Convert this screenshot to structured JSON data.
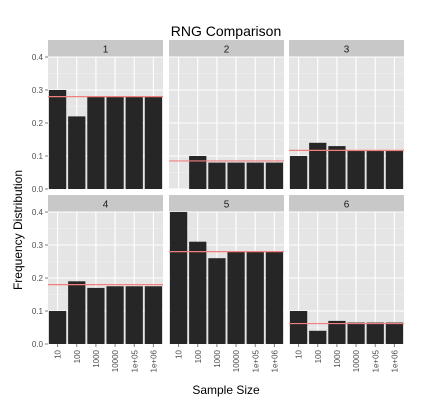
{
  "chart_data": {
    "type": "bar",
    "title": "RNG Comparison",
    "xlabel": "Sample Size",
    "ylabel": "Frequency Distribution",
    "categories": [
      "10",
      "100",
      "1000",
      "10000",
      "1e+05",
      "1e+06"
    ],
    "ylim": [
      0,
      0.4
    ],
    "yticks": [
      "0.0",
      "0.1",
      "0.2",
      "0.3",
      "0.4"
    ],
    "grid": true,
    "colors": {
      "panel_bg": "#e5e5e5",
      "strip_bg": "#c8c8c8",
      "bar": "#262626",
      "reference_line": "#f08080",
      "grid": "#ffffff"
    },
    "facets": [
      {
        "label": "1",
        "values": [
          0.3,
          0.22,
          0.28,
          0.28,
          0.28,
          0.28
        ],
        "reference": 0.28
      },
      {
        "label": "2",
        "values": [
          0.0,
          0.1,
          0.08,
          0.08,
          0.08,
          0.08
        ],
        "reference": 0.085
      },
      {
        "label": "3",
        "values": [
          0.1,
          0.14,
          0.13,
          0.115,
          0.115,
          0.115
        ],
        "reference": 0.117
      },
      {
        "label": "4",
        "values": [
          0.1,
          0.19,
          0.17,
          0.175,
          0.175,
          0.175
        ],
        "reference": 0.18
      },
      {
        "label": "5",
        "values": [
          0.4,
          0.31,
          0.26,
          0.28,
          0.28,
          0.28
        ],
        "reference": 0.28
      },
      {
        "label": "6",
        "values": [
          0.1,
          0.04,
          0.07,
          0.065,
          0.065,
          0.065
        ],
        "reference": 0.062
      }
    ]
  }
}
